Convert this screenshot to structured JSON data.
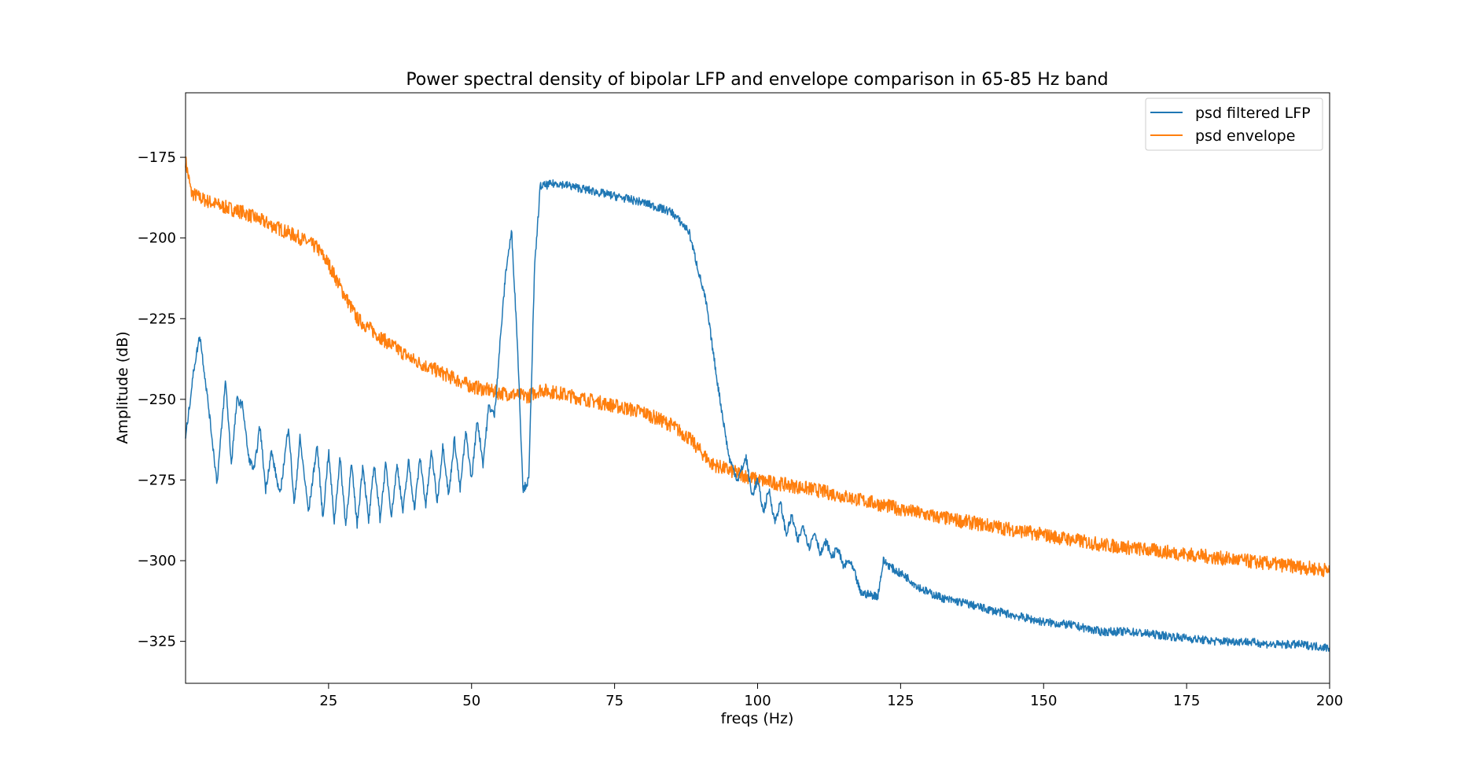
{
  "chart_data": {
    "type": "line",
    "title": "Power spectral density of bipolar LFP and envelope comparison in 65-85 Hz band",
    "xlabel": "freqs (Hz)",
    "ylabel": "Amplitude (dB)",
    "xlim": [
      0,
      200
    ],
    "ylim": [
      -338,
      -155
    ],
    "xticks": [
      25,
      50,
      75,
      100,
      125,
      150,
      175,
      200
    ],
    "yticks": [
      -175,
      -200,
      -225,
      -250,
      -275,
      -300,
      -325
    ],
    "grid": false,
    "legend": "top-right",
    "series": [
      {
        "name": "psd filtered LFP",
        "color": "#1f77b4",
        "x": [
          0,
          1.5,
          2.5,
          4,
          5.5,
          7,
          8,
          9,
          10,
          11,
          12,
          13,
          14,
          15,
          16.5,
          18,
          19,
          20,
          21.5,
          23,
          24,
          25,
          26,
          27,
          28,
          29,
          30,
          31,
          32,
          33,
          34,
          35,
          36,
          37,
          38,
          39,
          40,
          41,
          42,
          43,
          44,
          45,
          46,
          47,
          48,
          49,
          50,
          51,
          52,
          53,
          54,
          55,
          56,
          57,
          58,
          59,
          60,
          61,
          62,
          65,
          70,
          75,
          80,
          85,
          88,
          91,
          93,
          95,
          96.5,
          98,
          99,
          100,
          101,
          102,
          103,
          104,
          105,
          106,
          107,
          108,
          109,
          110,
          111,
          112,
          113,
          114,
          115,
          116,
          117,
          118,
          121,
          122,
          124,
          126,
          128,
          130,
          133,
          136,
          140,
          145,
          150,
          155,
          160,
          165,
          170,
          175,
          180,
          185,
          190,
          195,
          200
        ],
        "y": [
          -262,
          -240,
          -230,
          -252,
          -276,
          -244,
          -270,
          -250,
          -252,
          -268,
          -272,
          -258,
          -278,
          -266,
          -280,
          -258,
          -283,
          -262,
          -285,
          -264,
          -287,
          -266,
          -288,
          -268,
          -289,
          -270,
          -289,
          -270,
          -288,
          -270,
          -287,
          -270,
          -286,
          -270,
          -285,
          -269,
          -284,
          -268,
          -283,
          -266,
          -282,
          -264,
          -280,
          -262,
          -278,
          -260,
          -275,
          -256,
          -270,
          -252,
          -255,
          -232,
          -210,
          -198,
          -232,
          -278,
          -275,
          -210,
          -184,
          -183,
          -185,
          -187,
          -189,
          -192,
          -198,
          -220,
          -245,
          -268,
          -275,
          -268,
          -280,
          -275,
          -285,
          -278,
          -288,
          -282,
          -292,
          -286,
          -294,
          -289,
          -296,
          -291,
          -298,
          -294,
          -299,
          -296,
          -302,
          -300,
          -304,
          -310,
          -311,
          -300,
          -303,
          -305,
          -308,
          -310,
          -312,
          -313,
          -315,
          -317,
          -319,
          -320,
          -322,
          -322,
          -323,
          -324,
          -325,
          -325,
          -326,
          -326,
          -327
        ]
      },
      {
        "name": "psd envelope",
        "color": "#ff7f0e",
        "x": [
          0,
          1,
          3,
          6,
          10,
          15,
          20,
          23,
          25,
          27,
          30,
          35,
          40,
          45,
          50,
          55,
          60,
          62,
          65,
          70,
          75,
          80,
          85,
          88,
          92,
          95,
          100,
          110,
          120,
          130,
          140,
          150,
          160,
          170,
          180,
          190,
          200
        ],
        "y": [
          -176,
          -186,
          -188,
          -190,
          -192,
          -196,
          -200,
          -203,
          -208,
          -215,
          -225,
          -232,
          -238,
          -242,
          -246,
          -248,
          -249,
          -247,
          -248,
          -250,
          -252,
          -254,
          -258,
          -262,
          -270,
          -272,
          -275,
          -278,
          -282,
          -286,
          -289,
          -292,
          -295,
          -297,
          -299,
          -301,
          -303
        ]
      }
    ]
  }
}
